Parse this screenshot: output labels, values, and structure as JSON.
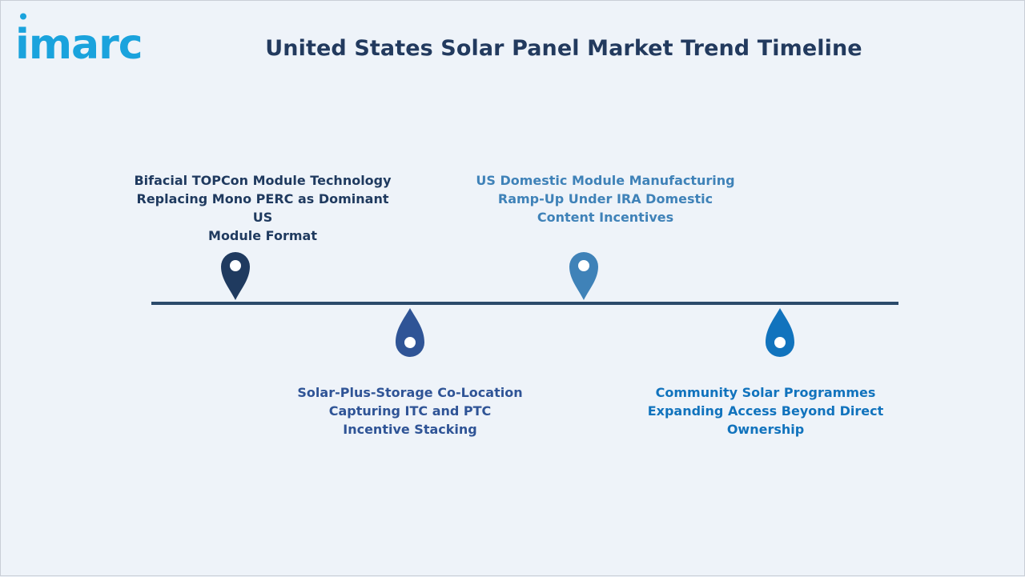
{
  "brand": {
    "logo_text": "imarc",
    "logo_color": "#1aa3dd"
  },
  "title": "United States Solar Panel Market Trend Timeline",
  "colors": {
    "line": "#2b4a6b",
    "milestone_1": "#1f3a5f",
    "milestone_2": "#2f5496",
    "milestone_3": "#3f82b8",
    "milestone_4": "#1173bd"
  },
  "milestones": [
    {
      "position": "above",
      "icon": "map-pin-icon",
      "lines": [
        "Bifacial TOPCon Module Technology",
        "Replacing Mono PERC as Dominant US",
        "Module Format"
      ]
    },
    {
      "position": "below",
      "icon": "drop-pin-icon",
      "lines": [
        "Solar-Plus-Storage Co-Location",
        "Capturing ITC and PTC",
        "Incentive Stacking"
      ]
    },
    {
      "position": "above",
      "icon": "map-pin-icon",
      "lines": [
        "US Domestic Module Manufacturing",
        "Ramp-Up Under IRA Domestic",
        "Content Incentives"
      ]
    },
    {
      "position": "below",
      "icon": "drop-pin-icon",
      "lines": [
        "Community Solar Programmes",
        "Expanding Access Beyond Direct",
        "Ownership"
      ]
    }
  ]
}
